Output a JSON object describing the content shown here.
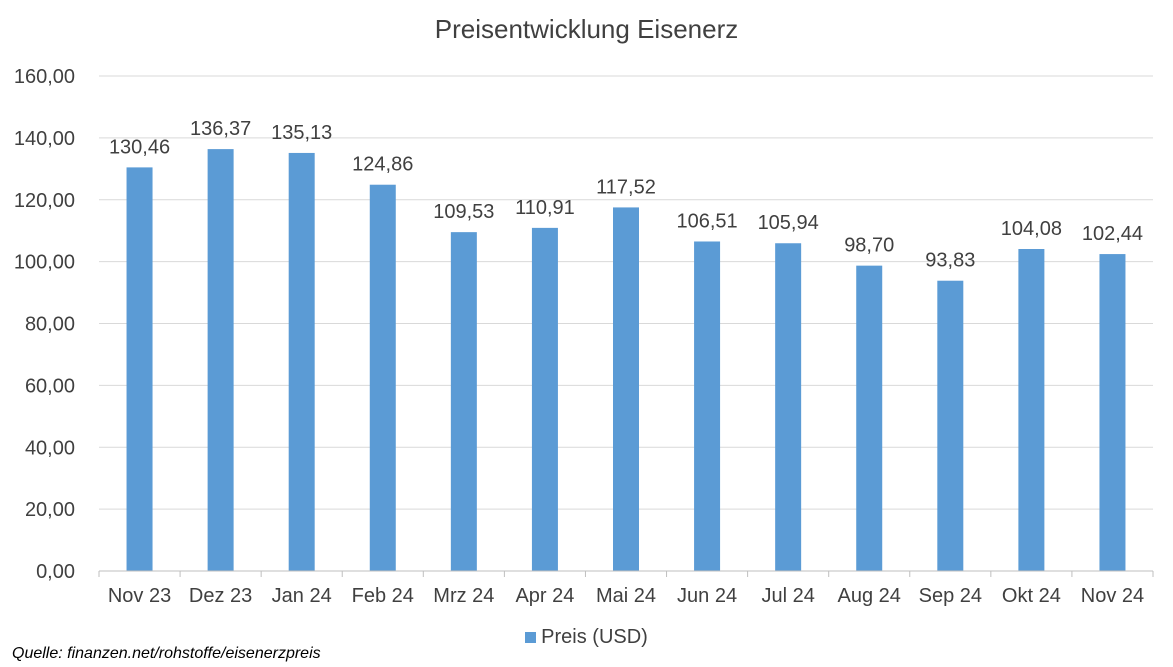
{
  "chart_data": {
    "type": "bar",
    "title": "Preisentwicklung Eisenerz",
    "xlabel": "",
    "ylabel": "",
    "categories": [
      "Nov 23",
      "Dez 23",
      "Jan 24",
      "Feb 24",
      "Mrz 24",
      "Apr 24",
      "Mai 24",
      "Jun 24",
      "Jul 24",
      "Aug 24",
      "Sep 24",
      "Okt 24",
      "Nov 24"
    ],
    "series": [
      {
        "name": "Preis (USD)",
        "values": [
          130.46,
          136.37,
          135.13,
          124.86,
          109.53,
          110.91,
          117.52,
          106.51,
          105.94,
          98.7,
          93.83,
          104.08,
          102.44
        ],
        "value_labels": [
          "130,46",
          "136,37",
          "135,13",
          "124,86",
          "109,53",
          "110,91",
          "117,52",
          "106,51",
          "105,94",
          "98,70",
          "93,83",
          "104,08",
          "102,44"
        ],
        "color": "#5b9bd5"
      }
    ],
    "ylim": [
      0,
      160
    ],
    "yticks": [
      0,
      20,
      40,
      60,
      80,
      100,
      120,
      140,
      160
    ],
    "ytick_labels": [
      "0,00",
      "20,00",
      "40,00",
      "60,00",
      "80,00",
      "100,00",
      "120,00",
      "140,00",
      "160,00"
    ],
    "grid": true,
    "legend": "bottom",
    "gridline_color": "#d9d9d9",
    "axis_color": "#bfbfbf"
  },
  "source_note": "Quelle: finanzen.net/rohstoffe/eisenerzpreis"
}
